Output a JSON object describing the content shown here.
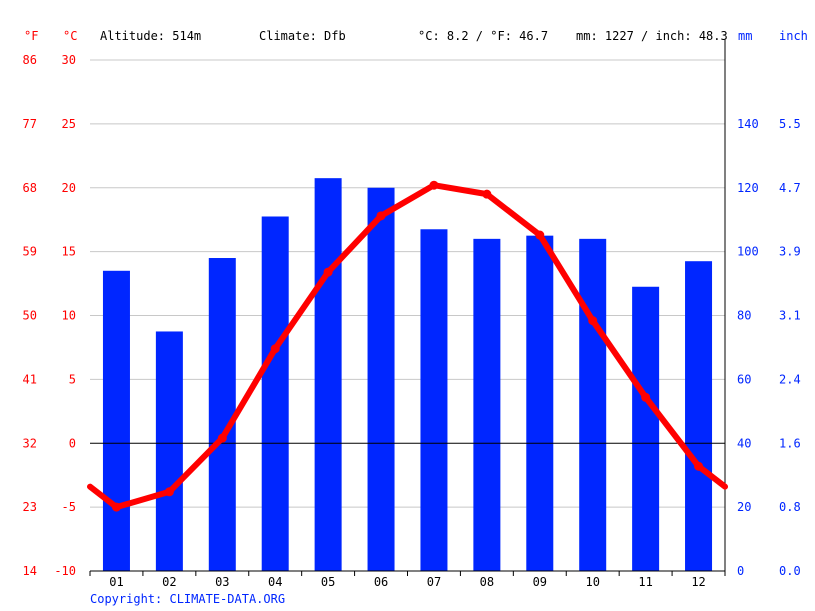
{
  "header": {
    "unit_f": "°F",
    "unit_c": "°C",
    "altitude": "Altitude: 514m",
    "climate": "Climate: Dfb",
    "avg_temp": "°C: 8.2 / °F: 46.7",
    "precip": "mm: 1227 / inch: 48.3",
    "unit_mm": "mm",
    "unit_inch": "inch"
  },
  "copyright": "Copyright: CLIMATE-DATA.ORG",
  "colors": {
    "precip": "#0026ff",
    "temp": "#ff0000",
    "grid": "#c8c8c8",
    "zero": "#000000"
  },
  "chart_data": {
    "type": "bar",
    "categories": [
      "01",
      "02",
      "03",
      "04",
      "05",
      "06",
      "07",
      "08",
      "09",
      "10",
      "11",
      "12"
    ],
    "series": [
      {
        "type": "bar",
        "axis": "right",
        "values": [
          94,
          75,
          98,
          111,
          123,
          120,
          107,
          104,
          105,
          104,
          89,
          97
        ]
      },
      {
        "type": "line",
        "axis": "left",
        "values": [
          -5.0,
          -3.8,
          0.4,
          7.4,
          13.4,
          17.8,
          20.2,
          19.5,
          16.3,
          9.6,
          3.6,
          -1.8
        ]
      }
    ],
    "left_axis_c": {
      "ylim": [
        -10,
        30
      ],
      "ticks": [
        30,
        25,
        20,
        15,
        10,
        5,
        0,
        -5,
        -10
      ]
    },
    "left_axis_f": {
      "ticks": [
        86,
        77,
        68,
        59,
        50,
        41,
        32,
        23,
        14
      ]
    },
    "right_axis_mm": {
      "ylim": [
        0,
        160
      ],
      "ticks": [
        140,
        120,
        100,
        80,
        60,
        40,
        20,
        0
      ]
    },
    "right_axis_inch": {
      "ticks": [
        "5.5",
        "4.7",
        "3.9",
        "3.1",
        "2.4",
        "1.6",
        "0.8",
        "0.0"
      ]
    },
    "grid": true
  }
}
